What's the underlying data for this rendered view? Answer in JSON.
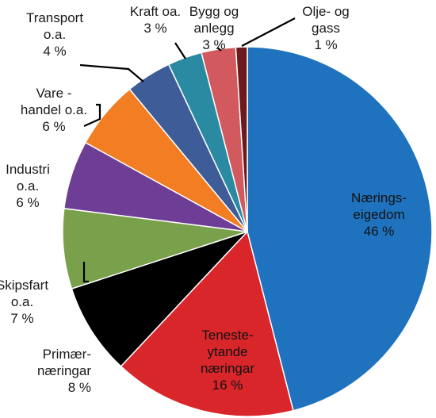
{
  "chart_data": {
    "type": "pie",
    "title": "",
    "slices": [
      {
        "name": "Nærings-eigedom",
        "lines": [
          "Nærings-",
          "eigedom",
          "46 %"
        ],
        "value": 46,
        "color": "#1f73be"
      },
      {
        "name": "Teneste-ytande næringar",
        "lines": [
          "Teneste-",
          "ytande",
          "næringar",
          "16 %"
        ],
        "value": 16,
        "color": "#d9262b"
      },
      {
        "name": "Primær-næringar",
        "lines": [
          "Primær-",
          "næringar",
          "8 %"
        ],
        "value": 8,
        "color": "#000000"
      },
      {
        "name": "Skipsfart o.a.",
        "lines": [
          "Skipsfart",
          "o.a.",
          "7 %"
        ],
        "value": 7,
        "color": "#79a04a"
      },
      {
        "name": "Industri o.a.",
        "lines": [
          "Industri",
          "o.a.",
          "6 %"
        ],
        "value": 6,
        "color": "#6e3d95"
      },
      {
        "name": "Vare-handel o.a.",
        "lines": [
          "Vare -",
          "handel o.a.",
          "6 %"
        ],
        "value": 6,
        "color": "#f27d22"
      },
      {
        "name": "Transport o.a.",
        "lines": [
          "Transport",
          "o.a.",
          "4 %"
        ],
        "value": 4,
        "color": "#3e5c97"
      },
      {
        "name": "Kraft oa.",
        "lines": [
          "Kraft oa.",
          "3 %"
        ],
        "value": 3,
        "color": "#2a8aa2"
      },
      {
        "name": "Bygg og anlegg",
        "lines": [
          "Bygg og",
          "anlegg",
          "3 %"
        ],
        "value": 3,
        "color": "#d25a5e"
      },
      {
        "name": "Olje- og gass",
        "lines": [
          "Olje- og",
          "gass",
          "1 %"
        ],
        "value": 1,
        "color": "#6b1a1d"
      }
    ]
  }
}
